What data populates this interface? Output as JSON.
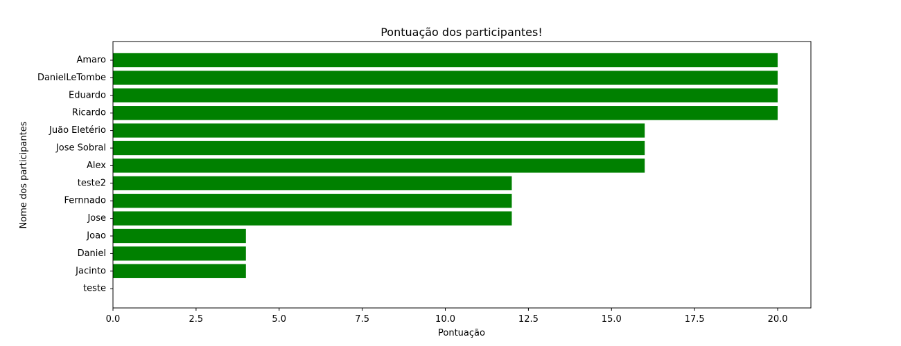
{
  "chart_data": {
    "type": "bar",
    "orientation": "horizontal",
    "title": "Pontuação dos participantes!",
    "xlabel": "Pontuação",
    "ylabel": "Nome dos participantes",
    "categories": [
      "Amaro",
      "DanielLeTombe",
      "Eduardo",
      "Ricardo",
      "Juão Eletério",
      "Jose Sobral",
      "Alex",
      "teste2",
      "Fernnado",
      "Jose",
      "Joao",
      "Daniel",
      "Jacinto",
      "teste"
    ],
    "values": [
      20,
      20,
      20,
      20,
      16,
      16,
      16,
      12,
      12,
      12,
      4,
      4,
      4,
      0
    ],
    "xlim": [
      0,
      21
    ],
    "xticks": [
      "0.0",
      "2.5",
      "5.0",
      "7.5",
      "10.0",
      "12.5",
      "15.0",
      "17.5",
      "20.0"
    ],
    "bar_color": "#008000",
    "grid": false,
    "legend": false
  }
}
